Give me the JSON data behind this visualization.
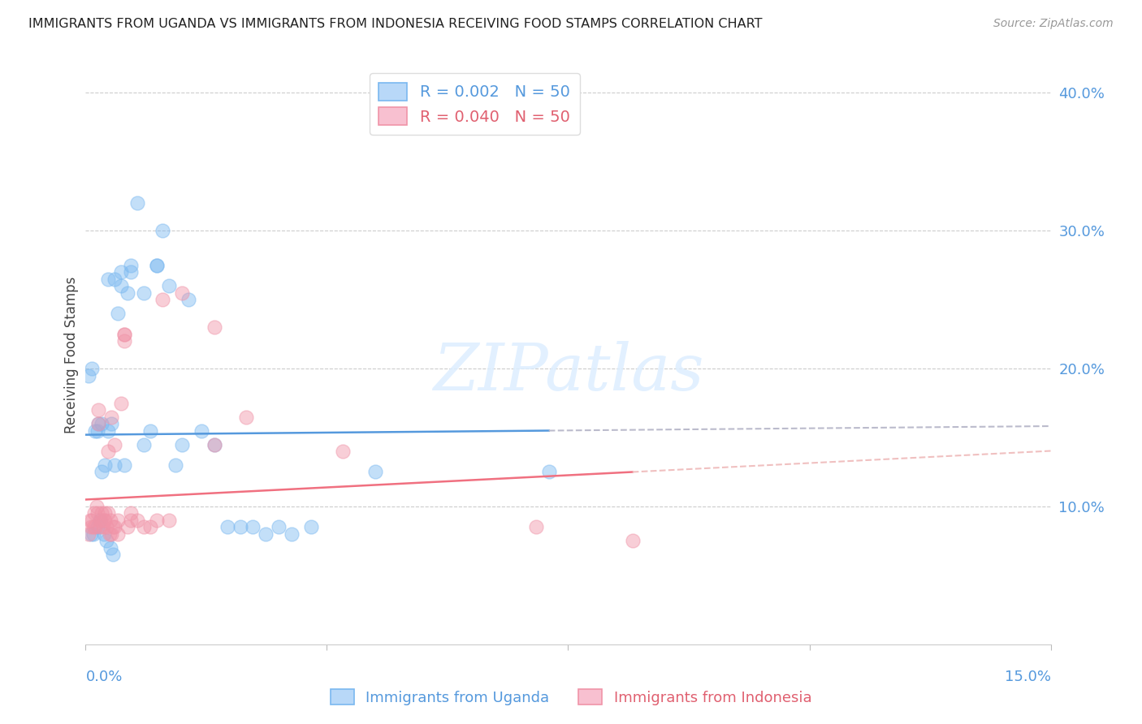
{
  "title": "IMMIGRANTS FROM UGANDA VS IMMIGRANTS FROM INDONESIA RECEIVING FOOD STAMPS CORRELATION CHART",
  "source": "Source: ZipAtlas.com",
  "ylabel": "Receiving Food Stamps",
  "xlim": [
    0.0,
    15.0
  ],
  "ylim": [
    0.0,
    42.0
  ],
  "uganda_color": "#7ab8f0",
  "indonesia_color": "#f094a8",
  "trend_uganda_color": "#5599dd",
  "trend_indonesia_color": "#f07080",
  "trend_uganda_dashed_color": "#bbccee",
  "trend_indonesia_dashed_color": "#f0b0b8",
  "watermark_text": "ZIPatlas",
  "watermark_color": "#ddeeff",
  "right_yticks": [
    10.0,
    20.0,
    30.0,
    40.0
  ],
  "uganda_x": [
    0.05,
    0.08,
    0.1,
    0.12,
    0.15,
    0.18,
    0.2,
    0.22,
    0.25,
    0.28,
    0.3,
    0.32,
    0.35,
    0.38,
    0.4,
    0.42,
    0.45,
    0.5,
    0.55,
    0.6,
    0.65,
    0.7,
    0.8,
    0.9,
    1.0,
    1.1,
    1.2,
    1.3,
    1.5,
    1.6,
    1.8,
    2.0,
    2.2,
    2.4,
    2.6,
    2.8,
    3.0,
    3.2,
    3.5,
    4.5,
    0.18,
    0.25,
    0.35,
    0.45,
    0.55,
    0.7,
    0.9,
    1.1,
    1.4,
    7.2
  ],
  "uganda_y": [
    19.5,
    8.0,
    20.0,
    8.0,
    15.5,
    8.5,
    16.0,
    9.0,
    12.5,
    8.0,
    13.0,
    7.5,
    15.5,
    7.0,
    16.0,
    6.5,
    26.5,
    24.0,
    27.0,
    13.0,
    25.5,
    27.5,
    32.0,
    25.5,
    15.5,
    27.5,
    30.0,
    26.0,
    14.5,
    25.0,
    15.5,
    14.5,
    8.5,
    8.5,
    8.5,
    8.0,
    8.5,
    8.0,
    8.5,
    12.5,
    15.5,
    16.0,
    26.5,
    13.0,
    26.0,
    27.0,
    14.5,
    27.5,
    13.0,
    12.5
  ],
  "indonesia_x": [
    0.05,
    0.07,
    0.08,
    0.1,
    0.12,
    0.13,
    0.15,
    0.17,
    0.18,
    0.2,
    0.22,
    0.23,
    0.25,
    0.27,
    0.28,
    0.3,
    0.32,
    0.35,
    0.37,
    0.38,
    0.4,
    0.42,
    0.45,
    0.5,
    0.55,
    0.6,
    0.65,
    0.7,
    0.8,
    1.0,
    1.2,
    1.5,
    2.0,
    2.5,
    4.0,
    7.0,
    8.5,
    0.35,
    0.45,
    0.6,
    0.2,
    0.3,
    0.4,
    0.5,
    0.6,
    0.7,
    0.9,
    1.1,
    1.3,
    2.0
  ],
  "indonesia_y": [
    8.0,
    9.0,
    8.5,
    9.0,
    8.5,
    9.5,
    8.5,
    10.0,
    9.5,
    16.0,
    8.5,
    9.0,
    9.5,
    8.5,
    9.0,
    9.5,
    8.5,
    9.5,
    8.0,
    9.0,
    8.0,
    8.5,
    8.5,
    8.0,
    17.5,
    22.5,
    8.5,
    9.0,
    9.0,
    8.5,
    25.0,
    25.5,
    23.0,
    16.5,
    14.0,
    8.5,
    7.5,
    14.0,
    14.5,
    22.5,
    17.0,
    9.0,
    16.5,
    9.0,
    22.0,
    9.5,
    8.5,
    9.0,
    9.0,
    14.5
  ],
  "ug_trend_y0": 15.2,
  "ug_trend_y1": 15.5,
  "id_trend_y0": 10.5,
  "id_trend_y1": 12.5,
  "ug_solid_xmax": 7.2,
  "id_solid_xmax": 8.5
}
